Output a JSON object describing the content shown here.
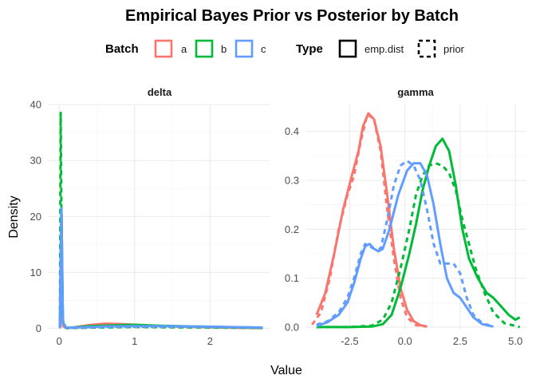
{
  "chart_data": {
    "type": "line",
    "title": "Empirical Bayes Prior vs Posterior by Batch",
    "xlabel": "Value",
    "ylabel": "Density",
    "legend": {
      "position": "top",
      "groups": [
        {
          "title": "Batch",
          "keys": [
            "a",
            "b",
            "c"
          ]
        },
        {
          "title": "Type",
          "keys": [
            "emp.dist",
            "prior"
          ]
        }
      ]
    },
    "colors": {
      "a": "#F8766D",
      "b": "#00BA38",
      "c": "#619CFF"
    },
    "line_styles": {
      "emp.dist": "solid",
      "prior": "dashed"
    },
    "grid": true,
    "panels": [
      {
        "label": "delta",
        "xlim": [
          -0.15,
          2.8
        ],
        "ylim": [
          -0.2,
          40
        ],
        "xticks": [
          0,
          1,
          2
        ],
        "yticks": [
          0,
          10,
          20,
          30,
          40
        ],
        "series": [
          {
            "batch": "a",
            "type": "emp.dist",
            "points": [
              [
                0.01,
                0.05
              ],
              [
                0.03,
                10.5
              ],
              [
                0.05,
                0.4
              ],
              [
                0.1,
                0.05
              ],
              [
                0.2,
                0.2
              ],
              [
                0.4,
                0.6
              ],
              [
                0.6,
                0.85
              ],
              [
                0.8,
                0.8
              ],
              [
                1.0,
                0.65
              ],
              [
                1.2,
                0.5
              ],
              [
                1.5,
                0.35
              ],
              [
                1.8,
                0.25
              ],
              [
                2.1,
                0.15
              ],
              [
                2.4,
                0.1
              ],
              [
                2.7,
                0.05
              ]
            ]
          },
          {
            "batch": "a",
            "type": "prior",
            "points": [
              [
                0.01,
                0.05
              ],
              [
                0.03,
                8.0
              ],
              [
                0.05,
                0.5
              ],
              [
                0.1,
                0.05
              ],
              [
                0.3,
                0.1
              ],
              [
                0.6,
                0.25
              ],
              [
                1.0,
                0.3
              ],
              [
                1.5,
                0.25
              ],
              [
                2.0,
                0.2
              ],
              [
                2.7,
                0.1
              ]
            ]
          },
          {
            "batch": "b",
            "type": "emp.dist",
            "points": [
              [
                0.01,
                0.05
              ],
              [
                0.03,
                22.0
              ],
              [
                0.05,
                1.0
              ],
              [
                0.1,
                0.1
              ],
              [
                0.2,
                0.2
              ],
              [
                0.4,
                0.4
              ],
              [
                0.7,
                0.55
              ],
              [
                1.0,
                0.65
              ],
              [
                1.3,
                0.5
              ],
              [
                1.6,
                0.4
              ],
              [
                2.0,
                0.3
              ],
              [
                2.4,
                0.2
              ],
              [
                2.7,
                0.1
              ]
            ]
          },
          {
            "batch": "b",
            "type": "prior",
            "points": [
              [
                0.01,
                0.1
              ],
              [
                0.02,
                38.5
              ],
              [
                0.04,
                3.0
              ],
              [
                0.06,
                0.3
              ],
              [
                0.1,
                0.05
              ],
              [
                0.5,
                0.15
              ],
              [
                1.0,
                0.25
              ],
              [
                1.5,
                0.2
              ],
              [
                2.0,
                0.15
              ],
              [
                2.7,
                0.1
              ]
            ]
          },
          {
            "batch": "c",
            "type": "emp.dist",
            "points": [
              [
                0.01,
                0.05
              ],
              [
                0.03,
                21.5
              ],
              [
                0.05,
                0.8
              ],
              [
                0.1,
                0.1
              ],
              [
                0.3,
                0.2
              ],
              [
                0.6,
                0.35
              ],
              [
                1.0,
                0.4
              ],
              [
                1.4,
                0.4
              ],
              [
                1.8,
                0.35
              ],
              [
                2.2,
                0.25
              ],
              [
                2.7,
                0.15
              ]
            ]
          },
          {
            "batch": "c",
            "type": "prior",
            "points": [
              [
                0.01,
                0.05
              ],
              [
                0.03,
                16.0
              ],
              [
                0.05,
                1.0
              ],
              [
                0.1,
                0.1
              ],
              [
                0.4,
                0.2
              ],
              [
                0.8,
                0.3
              ],
              [
                1.2,
                0.3
              ],
              [
                1.6,
                0.3
              ],
              [
                2.0,
                0.25
              ],
              [
                2.7,
                0.15
              ]
            ]
          }
        ]
      },
      {
        "label": "gamma",
        "xlim": [
          -4.5,
          5.5
        ],
        "ylim": [
          -0.005,
          0.455
        ],
        "xticks": [
          -2.5,
          0.0,
          2.5,
          5.0
        ],
        "xticklabels": [
          "-2.5",
          "0.0",
          "2.5",
          "5.0"
        ],
        "yticks": [
          0.0,
          0.1,
          0.2,
          0.3,
          0.4
        ],
        "yticklabels": [
          "0.0",
          "0.1",
          "0.2",
          "0.3",
          "0.4"
        ],
        "series": [
          {
            "batch": "a",
            "type": "emp.dist",
            "points": [
              [
                -4.0,
                0.025
              ],
              [
                -3.6,
                0.07
              ],
              [
                -3.2,
                0.15
              ],
              [
                -2.8,
                0.24
              ],
              [
                -2.4,
                0.31
              ],
              [
                -2.1,
                0.36
              ],
              [
                -1.9,
                0.41
              ],
              [
                -1.65,
                0.437
              ],
              [
                -1.4,
                0.425
              ],
              [
                -1.1,
                0.37
              ],
              [
                -0.8,
                0.27
              ],
              [
                -0.5,
                0.16
              ],
              [
                -0.2,
                0.08
              ],
              [
                0.1,
                0.035
              ],
              [
                0.4,
                0.012
              ],
              [
                0.7,
                0.004
              ],
              [
                1.0,
                0.001
              ]
            ]
          },
          {
            "batch": "a",
            "type": "prior",
            "points": [
              [
                -4.2,
                0.005
              ],
              [
                -3.8,
                0.03
              ],
              [
                -3.4,
                0.1
              ],
              [
                -3.0,
                0.2
              ],
              [
                -2.6,
                0.27
              ],
              [
                -2.3,
                0.31
              ],
              [
                -2.0,
                0.38
              ],
              [
                -1.7,
                0.435
              ],
              [
                -1.4,
                0.425
              ],
              [
                -1.1,
                0.36
              ],
              [
                -0.8,
                0.24
              ],
              [
                -0.5,
                0.14
              ],
              [
                -0.2,
                0.06
              ],
              [
                0.1,
                0.02
              ],
              [
                0.5,
                0.004
              ],
              [
                1.0,
                0.001
              ]
            ]
          },
          {
            "batch": "b",
            "type": "emp.dist",
            "points": [
              [
                -4.0,
                0.0
              ],
              [
                -2.5,
                0.0
              ],
              [
                -1.5,
                0.001
              ],
              [
                -1.0,
                0.006
              ],
              [
                -0.6,
                0.025
              ],
              [
                -0.2,
                0.08
              ],
              [
                0.2,
                0.15
              ],
              [
                0.5,
                0.21
              ],
              [
                0.8,
                0.28
              ],
              [
                1.1,
                0.33
              ],
              [
                1.4,
                0.37
              ],
              [
                1.7,
                0.385
              ],
              [
                2.0,
                0.36
              ],
              [
                2.3,
                0.29
              ],
              [
                2.6,
                0.2
              ],
              [
                2.9,
                0.14
              ],
              [
                3.3,
                0.1
              ],
              [
                3.7,
                0.07
              ],
              [
                4.0,
                0.06
              ],
              [
                4.4,
                0.04
              ],
              [
                4.7,
                0.025
              ],
              [
                5.0,
                0.015
              ],
              [
                5.2,
                0.02
              ]
            ]
          },
          {
            "batch": "b",
            "type": "prior",
            "points": [
              [
                -4.0,
                0.0
              ],
              [
                -2.5,
                0.0
              ],
              [
                -1.5,
                0.003
              ],
              [
                -1.0,
                0.015
              ],
              [
                -0.6,
                0.05
              ],
              [
                -0.2,
                0.12
              ],
              [
                0.2,
                0.2
              ],
              [
                0.5,
                0.27
              ],
              [
                0.8,
                0.31
              ],
              [
                1.1,
                0.33
              ],
              [
                1.4,
                0.335
              ],
              [
                1.7,
                0.33
              ],
              [
                2.0,
                0.315
              ],
              [
                2.3,
                0.28
              ],
              [
                2.6,
                0.22
              ],
              [
                2.9,
                0.17
              ],
              [
                3.2,
                0.12
              ],
              [
                3.6,
                0.07
              ],
              [
                4.0,
                0.03
              ],
              [
                4.5,
                0.008
              ],
              [
                5.2,
                0.0
              ]
            ]
          },
          {
            "batch": "c",
            "type": "emp.dist",
            "points": [
              [
                -4.0,
                0.002
              ],
              [
                -3.5,
                0.01
              ],
              [
                -3.0,
                0.025
              ],
              [
                -2.6,
                0.05
              ],
              [
                -2.3,
                0.09
              ],
              [
                -2.0,
                0.14
              ],
              [
                -1.8,
                0.165
              ],
              [
                -1.6,
                0.17
              ],
              [
                -1.4,
                0.16
              ],
              [
                -1.2,
                0.155
              ],
              [
                -1.0,
                0.16
              ],
              [
                -0.7,
                0.2
              ],
              [
                -0.3,
                0.27
              ],
              [
                0.1,
                0.32
              ],
              [
                0.4,
                0.335
              ],
              [
                0.7,
                0.335
              ],
              [
                1.0,
                0.31
              ],
              [
                1.3,
                0.25
              ],
              [
                1.6,
                0.17
              ],
              [
                1.9,
                0.1
              ],
              [
                2.2,
                0.07
              ],
              [
                2.5,
                0.06
              ],
              [
                2.8,
                0.04
              ],
              [
                3.1,
                0.02
              ],
              [
                3.5,
                0.006
              ],
              [
                4.0,
                0.001
              ]
            ]
          },
          {
            "batch": "c",
            "type": "prior",
            "points": [
              [
                -4.0,
                0.005
              ],
              [
                -3.5,
                0.012
              ],
              [
                -3.0,
                0.03
              ],
              [
                -2.6,
                0.06
              ],
              [
                -2.3,
                0.1
              ],
              [
                -2.0,
                0.15
              ],
              [
                -1.8,
                0.17
              ],
              [
                -1.6,
                0.165
              ],
              [
                -1.4,
                0.16
              ],
              [
                -1.1,
                0.16
              ],
              [
                -0.8,
                0.22
              ],
              [
                -0.5,
                0.29
              ],
              [
                -0.2,
                0.33
              ],
              [
                0.1,
                0.34
              ],
              [
                0.4,
                0.33
              ],
              [
                0.7,
                0.3
              ],
              [
                1.0,
                0.24
              ],
              [
                1.3,
                0.17
              ],
              [
                1.6,
                0.13
              ],
              [
                1.9,
                0.13
              ],
              [
                2.2,
                0.13
              ],
              [
                2.5,
                0.11
              ],
              [
                2.8,
                0.06
              ],
              [
                3.1,
                0.025
              ],
              [
                3.5,
                0.008
              ],
              [
                4.0,
                0.001
              ]
            ]
          }
        ]
      }
    ]
  }
}
